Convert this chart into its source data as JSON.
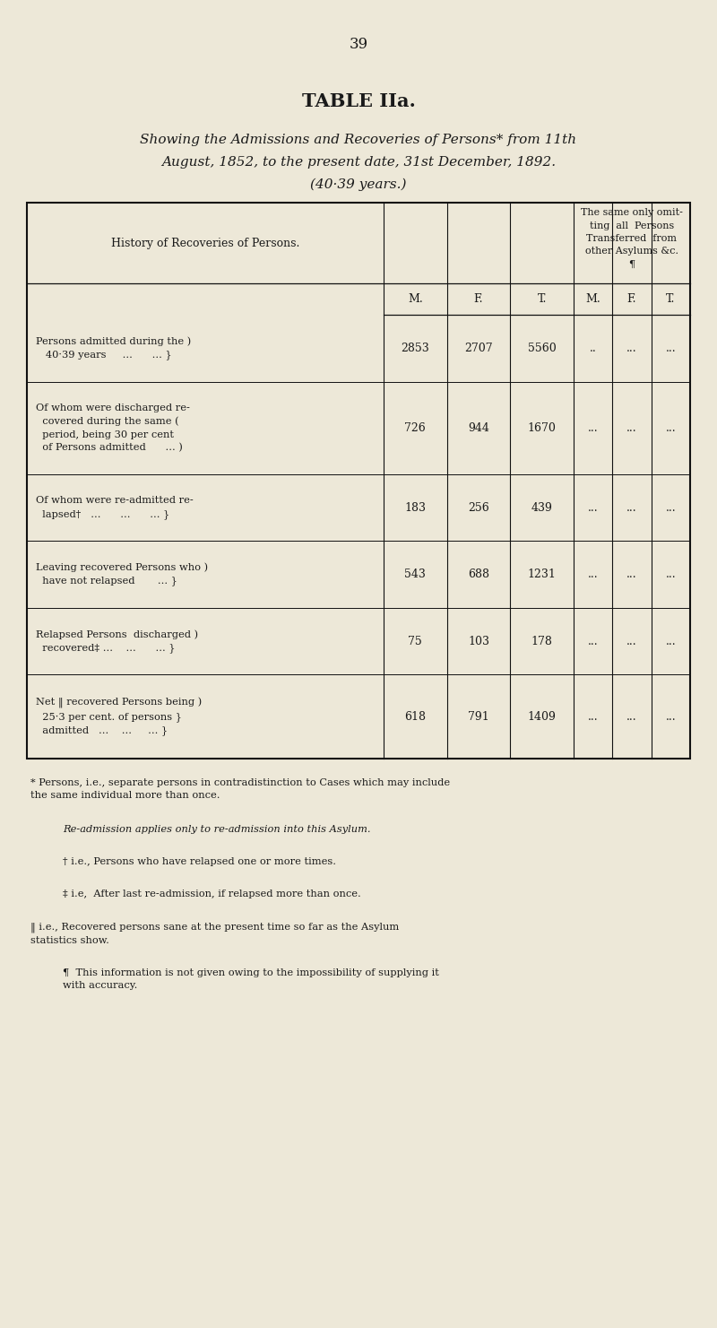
{
  "bg_color": "#ede8d8",
  "page_number": "39",
  "title": "TABLE IIa.",
  "subtitle_line1": "Showing the Admissions and Recoveries of Persons* from 11th",
  "subtitle_line2": "August, 1852, to the present date, 31st December, 1892.",
  "subtitle_line3": "(40·39 years.)",
  "table_header_left": "History of Recoveries of Persons.",
  "table_header_right": "The same only omit-\nting  all  Persons\nTransferred  from\nother Asylums &c.\n¶",
  "col_headers": [
    "M.",
    "F.",
    "T.",
    "M.",
    "F.",
    "T."
  ],
  "rows": [
    {
      "label": "Persons admitted during the )\n   40·39 years     ...      ... }",
      "italic_word": "Persons",
      "values": [
        "2853",
        "2707",
        "5560",
        "..",
        "...",
        "..."
      ]
    },
    {
      "label": "Of whom were discharged re-\ncovered during the same (\nperiod, being 30 per cent\nof Persons admitted      ... )",
      "italic_word": "Persons",
      "values": [
        "726",
        "944",
        "1670",
        "...",
        "...",
        "..."
      ]
    },
    {
      "label": "Of whom were re-admitted re-\nlapsed†   ...      ...      ... }",
      "italic_word": null,
      "values": [
        "183",
        "256",
        "439",
        "...",
        "...",
        "..."
      ]
    },
    {
      "label": "Leaving recovered Persons who )\nhave not relapsed       ... }",
      "italic_word": "Persons",
      "values": [
        "543",
        "688",
        "1231",
        "...",
        "...",
        "..."
      ]
    },
    {
      "label": "Relapsed Persons  discharged )\nrecovered‡ ...    ...      ... }",
      "italic_word": "Persons",
      "values": [
        "75",
        "103",
        "178",
        "...",
        "...",
        "..."
      ]
    },
    {
      "label": "Net ‖ recovered Persons being )\n25·3 per cent. of persons }\nadmitted   ...    ...     ... }",
      "italic_word": "Persons",
      "values": [
        "618",
        "791",
        "1409",
        "...",
        "...",
        "..."
      ]
    }
  ],
  "footnote1": "* Persons, i.e., separate persons in contradistinction to Cases which may include\nthe same individual more than once.",
  "footnote2": "Re-admission applies only to re-admission into this Asylum.",
  "footnote3": "† i.e., Persons who have relapsed one or more times.",
  "footnote4": "‡ i.e,  After last re-admission, if relapsed more than once.",
  "footnote5": "‖ i.e., Recovered persons sane at the present time so far as the Asylum\nstatistics show.",
  "footnote6": "¶  This information is not given owing to the impossibility of supplying it\nwith accuracy."
}
